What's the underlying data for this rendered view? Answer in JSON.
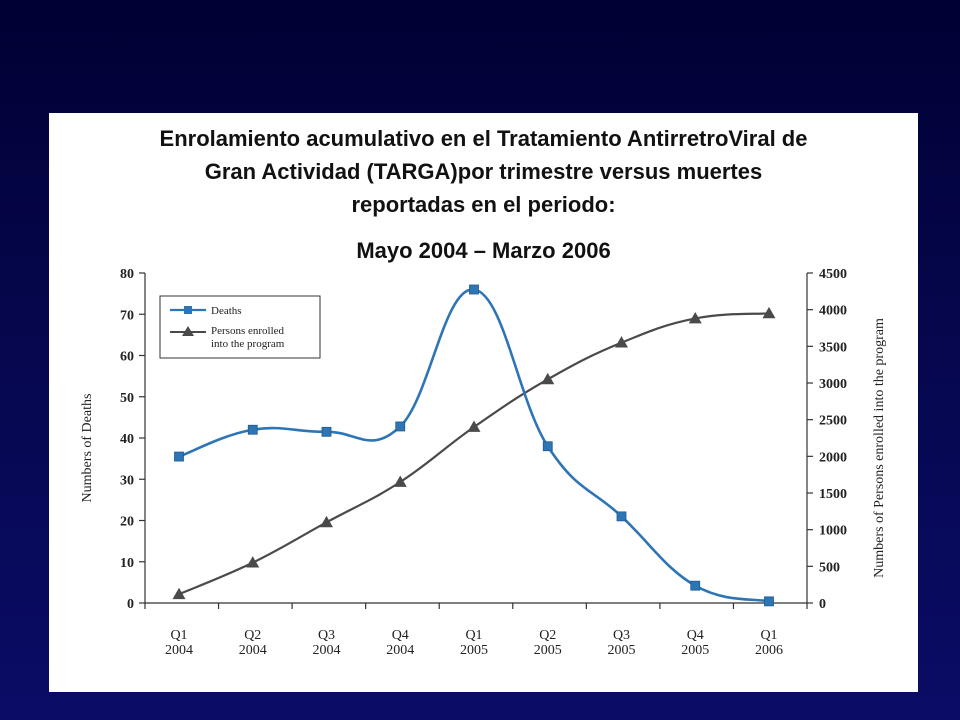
{
  "slide": {
    "title_lines": [
      "Enrolamiento acumulativo en el Tratamiento AntirretroViral de",
      "Gran Actividad (TARGA)por trimestre versus muertes",
      "reportadas en el periodo:"
    ],
    "subtitle": "Mayo 2004 – Marzo 2006"
  },
  "colors": {
    "deaths": "#2e75b6",
    "enrolled": "#4a4a4a",
    "axis": "#333333"
  },
  "chart_data": {
    "type": "line",
    "categories": [
      "Q1\n2004",
      "Q2\n2004",
      "Q3\n2004",
      "Q4\n2004",
      "Q1\n2005",
      "Q2\n2005",
      "Q3\n2005",
      "Q4\n2005",
      "Q1\n2006"
    ],
    "category_lines": [
      [
        "Q1",
        "2004"
      ],
      [
        "Q2",
        "2004"
      ],
      [
        "Q3",
        "2004"
      ],
      [
        "Q4",
        "2004"
      ],
      [
        "Q1",
        "2005"
      ],
      [
        "Q2",
        "2005"
      ],
      [
        "Q3",
        "2005"
      ],
      [
        "Q4",
        "2005"
      ],
      [
        "Q1",
        "2006"
      ]
    ],
    "series": [
      {
        "name": "Deaths",
        "axis": "left",
        "marker": "square",
        "values": [
          35.5,
          42,
          41.5,
          42.8,
          76,
          38,
          21,
          4.2,
          0.4
        ]
      },
      {
        "name": "Persons enrolled into the program",
        "legend_lines": [
          "Persons enrolled",
          "into the program"
        ],
        "axis": "right",
        "marker": "triangle",
        "values": [
          120,
          550,
          1100,
          1650,
          2400,
          3050,
          3550,
          3880,
          3950
        ]
      }
    ],
    "ylabel": "Numbers of Deaths",
    "y2label": "Numbers of Persons enrolled into the program",
    "ylim": [
      0,
      80
    ],
    "y2lim": [
      0,
      4500
    ],
    "yticks": [
      0,
      10,
      20,
      30,
      40,
      50,
      60,
      70,
      80
    ],
    "y2ticks": [
      0,
      500,
      1000,
      1500,
      2000,
      2500,
      3000,
      3500,
      4000,
      4500
    ],
    "grid": false,
    "legend_position": "top-left"
  }
}
